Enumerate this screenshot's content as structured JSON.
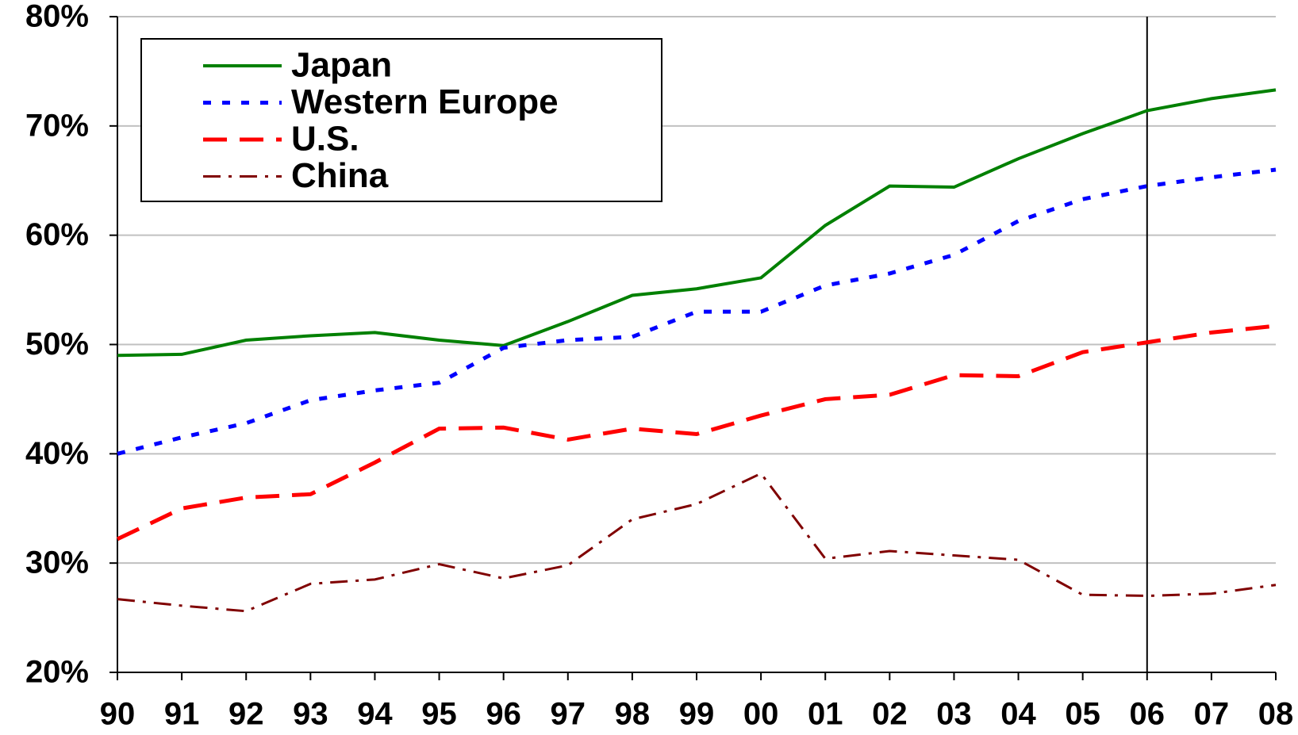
{
  "chart_data": {
    "type": "line",
    "categories": [
      "90",
      "91",
      "92",
      "93",
      "94",
      "95",
      "96",
      "97",
      "98",
      "99",
      "00",
      "01",
      "02",
      "03",
      "04",
      "05",
      "06",
      "07",
      "08"
    ],
    "series": [
      {
        "name": "Japan",
        "color": "#008000",
        "values": [
          49.0,
          49.1,
          50.4,
          50.8,
          51.1,
          50.4,
          49.9,
          52.1,
          54.5,
          55.1,
          56.1,
          60.9,
          64.5,
          64.4,
          67.0,
          69.3,
          71.4,
          72.5,
          73.3
        ]
      },
      {
        "name": "Western Europe",
        "color": "#0000ff",
        "values": [
          40.0,
          41.5,
          42.8,
          44.9,
          45.8,
          46.5,
          49.7,
          50.4,
          50.7,
          53.0,
          53.0,
          55.4,
          56.5,
          58.2,
          61.3,
          63.3,
          64.5,
          65.3,
          66.0
        ]
      },
      {
        "name": "U.S.",
        "color": "#ff0000",
        "values": [
          32.2,
          35.0,
          36.0,
          36.3,
          39.2,
          42.3,
          42.4,
          41.3,
          42.3,
          41.8,
          43.5,
          45.0,
          45.4,
          47.2,
          47.1,
          49.3,
          50.2,
          51.1,
          51.7
        ]
      },
      {
        "name": "China",
        "color": "#800000",
        "values": [
          26.7,
          26.1,
          25.6,
          28.1,
          28.5,
          29.9,
          28.6,
          29.8,
          34.0,
          35.4,
          38.2,
          30.4,
          31.1,
          30.7,
          30.3,
          27.1,
          27.0,
          27.2,
          28.0
        ]
      }
    ],
    "ylim": [
      20,
      80
    ],
    "yticks": [
      {
        "value": 20,
        "label": "20%"
      },
      {
        "value": 30,
        "label": "30%"
      },
      {
        "value": 40,
        "label": "40%"
      },
      {
        "value": 50,
        "label": "50%"
      },
      {
        "value": 60,
        "label": "60%"
      },
      {
        "value": 70,
        "label": "70%"
      },
      {
        "value": 80,
        "label": "80%"
      }
    ],
    "grid": true,
    "legend": "upper left"
  }
}
